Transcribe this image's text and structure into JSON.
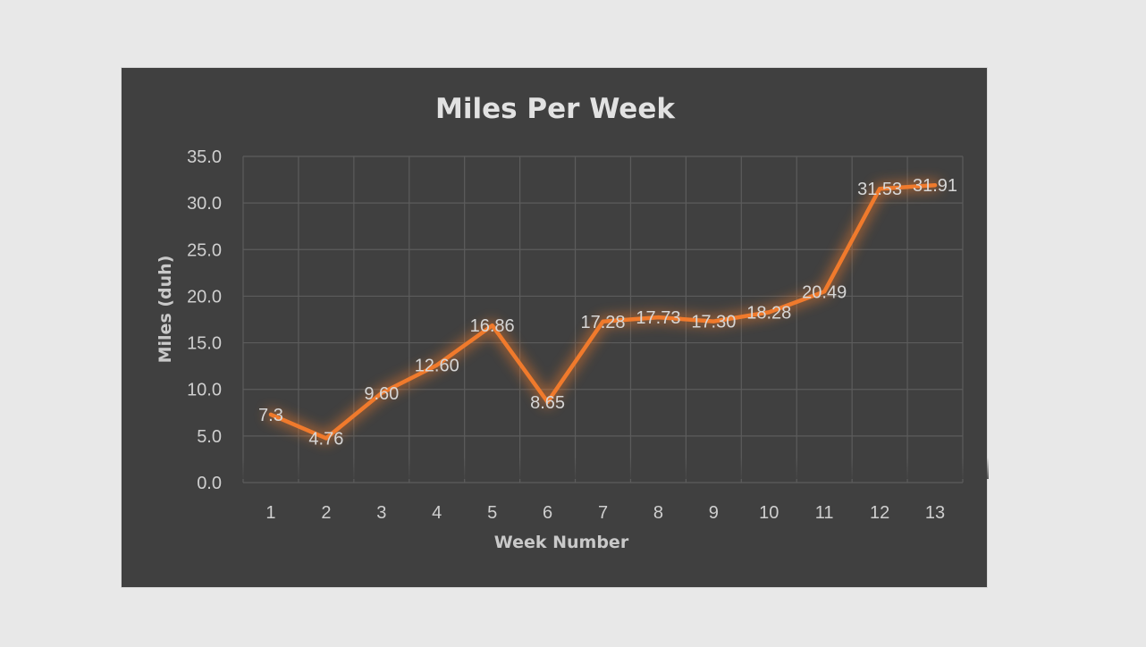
{
  "chart_data": {
    "type": "line",
    "title": "Miles Per Week",
    "xlabel": "Week Number",
    "ylabel": "Miles (duh)",
    "categories": [
      "1",
      "2",
      "3",
      "4",
      "5",
      "6",
      "7",
      "8",
      "9",
      "10",
      "11",
      "12",
      "13"
    ],
    "series": [
      {
        "name": "Miles",
        "values": [
          7.3,
          4.76,
          9.6,
          12.6,
          16.86,
          8.65,
          17.28,
          17.73,
          17.3,
          18.28,
          20.49,
          31.53,
          31.91
        ],
        "labels": [
          "7.3",
          "4.76",
          "9.60",
          "12.60",
          "16.86",
          "8.65",
          "17.28",
          "17.73",
          "17.30",
          "18.28",
          "20.49",
          "31.53",
          "31.91"
        ]
      }
    ],
    "ylim": [
      0,
      35
    ],
    "yticks": [
      "0.0",
      "5.0",
      "10.0",
      "15.0",
      "20.0",
      "25.0",
      "30.0",
      "35.0"
    ],
    "grid": true,
    "legend": "none",
    "colors": {
      "background": "#404040",
      "line": "#f07a2c",
      "glow": "#f07a2c",
      "grid": "#5c5c5c"
    }
  }
}
